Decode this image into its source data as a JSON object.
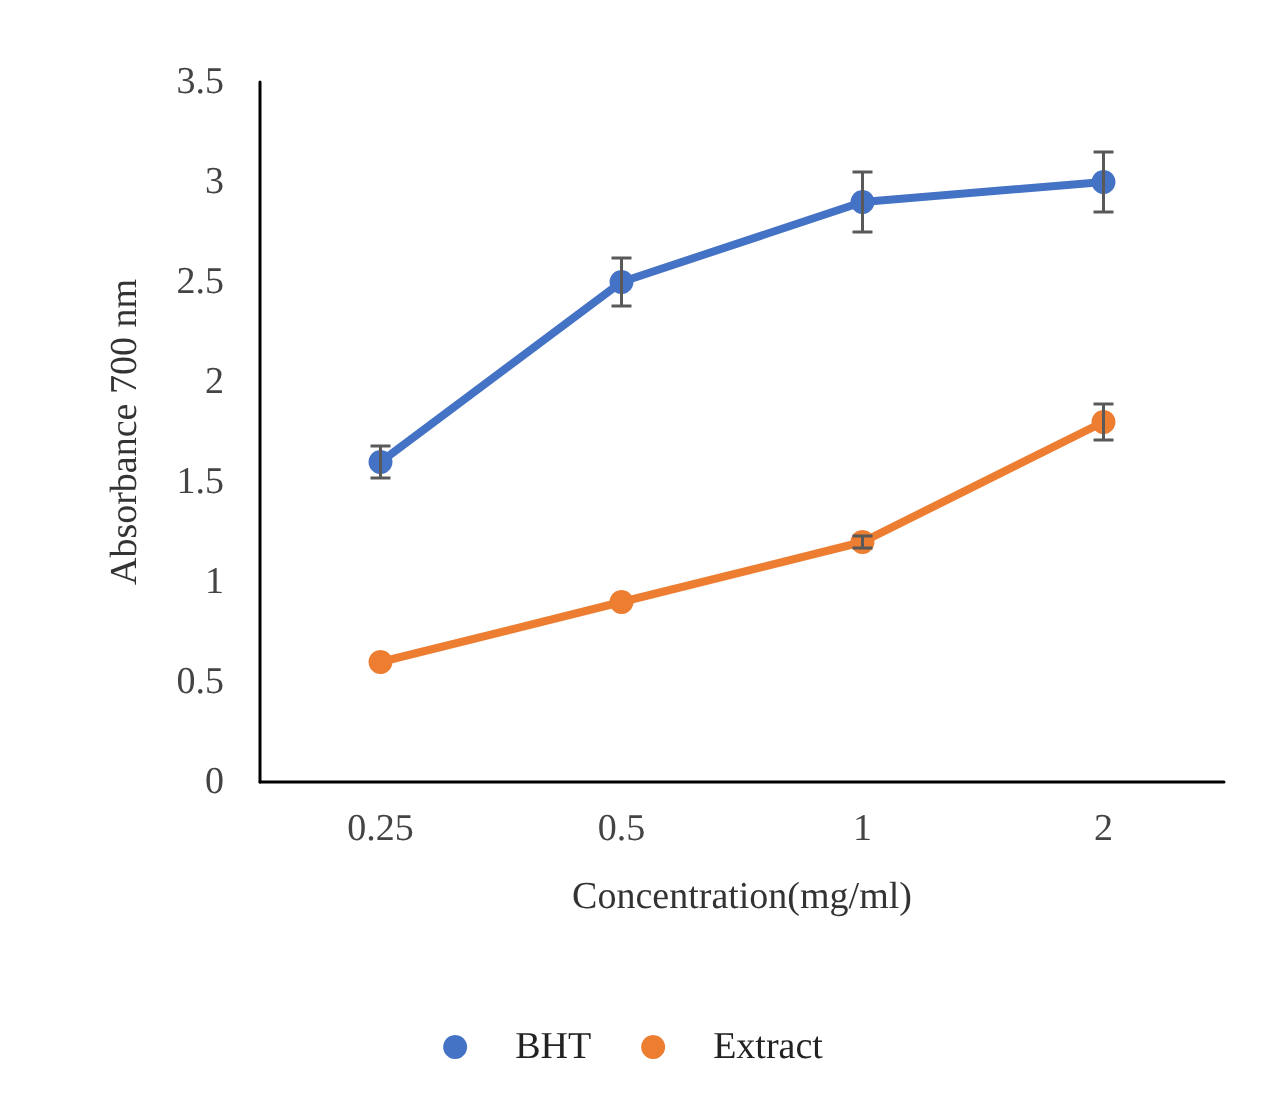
{
  "chart_data": {
    "type": "line",
    "xlabel": "Concentration(mg/ml)",
    "ylabel": "Absorbance 700 nm",
    "categories": [
      "0.25",
      "0.5",
      "1",
      "2"
    ],
    "series": [
      {
        "name": "BHT",
        "color": "#4472c4",
        "values": [
          1.6,
          2.5,
          2.9,
          3.0
        ],
        "errors": [
          0.08,
          0.12,
          0.15,
          0.15
        ]
      },
      {
        "name": "Extract",
        "color": "#ed7d31",
        "values": [
          0.6,
          0.9,
          1.2,
          1.8
        ],
        "errors": [
          null,
          null,
          0.03,
          0.09
        ]
      }
    ],
    "ylim": [
      0,
      3.5
    ],
    "yticks": [
      0,
      0.5,
      1,
      1.5,
      2,
      2.5,
      3,
      3.5
    ],
    "grid": false,
    "legend": "bottom",
    "marker": "circle",
    "line_style": "solid"
  }
}
